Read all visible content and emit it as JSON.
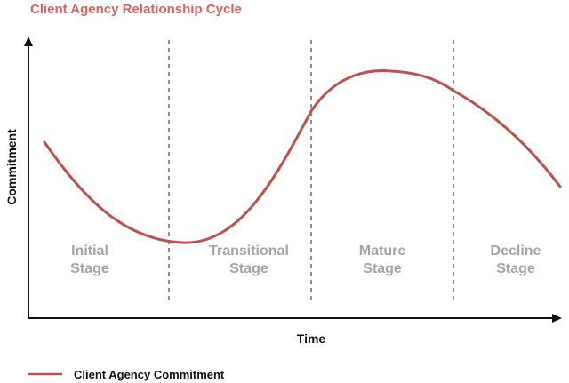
{
  "title": "Client Agency Relationship Cycle",
  "axes": {
    "x_label": "Time",
    "y_label": "Commitment"
  },
  "stages": [
    {
      "line1": "Initial",
      "line2": "Stage"
    },
    {
      "line1": "Transitional",
      "line2": "Stage"
    },
    {
      "line1": "Mature",
      "line2": "Stage"
    },
    {
      "line1": "Decline",
      "line2": "Stage"
    }
  ],
  "legend": {
    "label": "Client Agency Commitment"
  },
  "colors": {
    "title": "#d9625e",
    "curve": "#c0504d",
    "stage_label": "#a5a5a5",
    "divider": "#555555",
    "axis": "#111111"
  }
}
